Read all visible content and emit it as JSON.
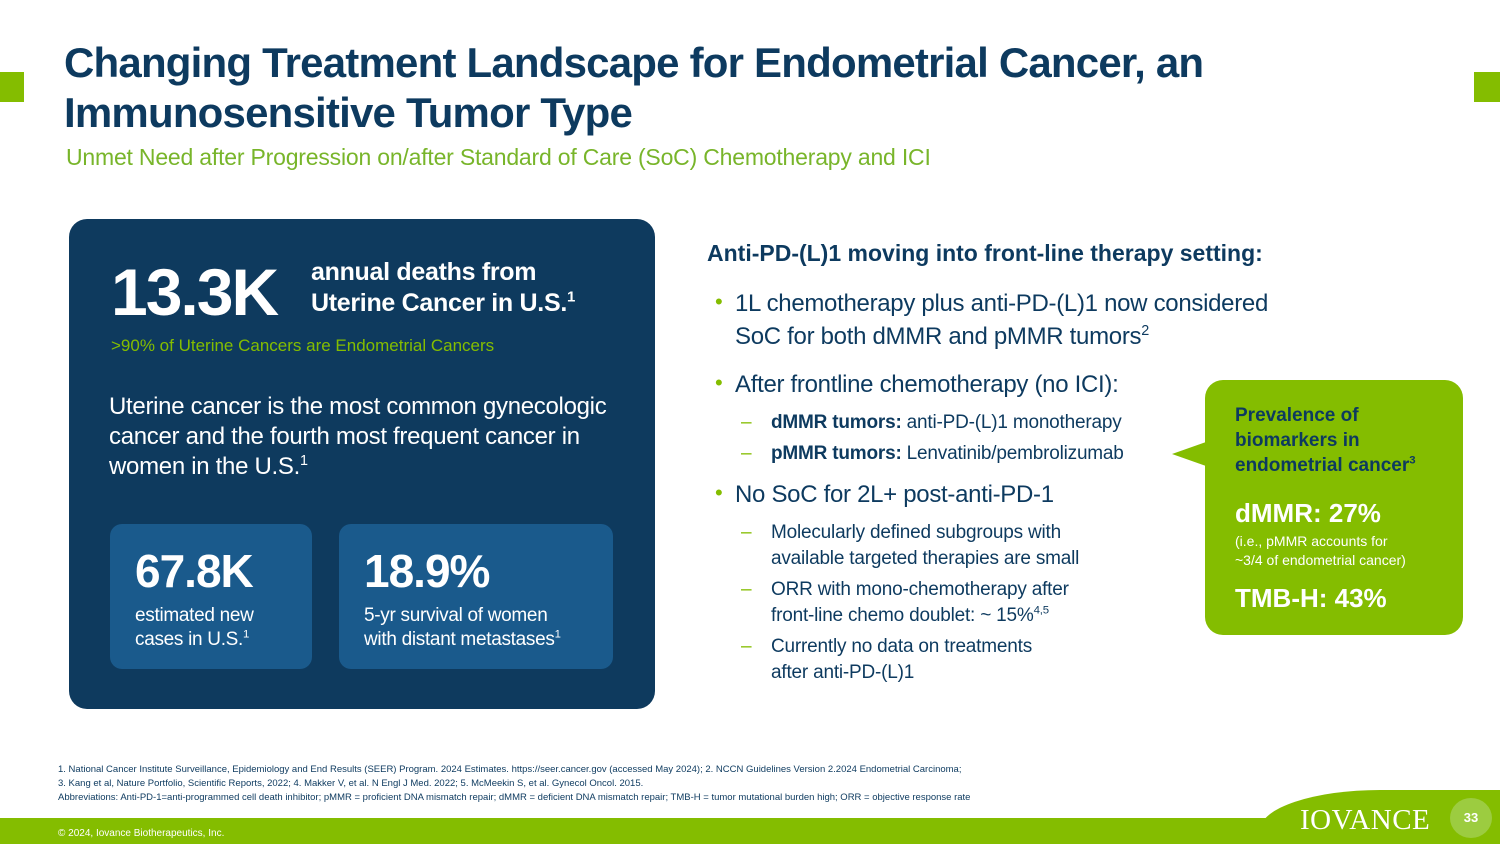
{
  "title": "Changing Treatment Landscape for Endometrial Cancer, an Immunosensitive Tumor Type",
  "subtitle": "Unmet Need after Progression on/after Standard of Care (SoC) Chemotherapy and ICI",
  "left_panel": {
    "big_stat": "13.3K",
    "big_stat_label_line1": "annual deaths from",
    "big_stat_label_line2": "Uterine Cancer in U.S.",
    "big_stat_ref": "1",
    "green_note": ">90% of Uterine Cancers are Endometrial Cancers",
    "description": "Uterine cancer is the most common gynecologic cancer and the fourth most frequent cancer in women in the U.S.",
    "description_ref": "1",
    "stat_boxes": [
      {
        "value": "67.8K",
        "label_line1": "estimated new",
        "label_line2": "cases in U.S.",
        "ref": "1"
      },
      {
        "value": "18.9%",
        "label_line1": "5-yr survival of women",
        "label_line2": "with distant metastases",
        "ref": "1"
      }
    ]
  },
  "right": {
    "heading": "Anti-PD-(L)1 moving into front-line therapy setting:",
    "bullet1_line1": "1L chemotherapy plus anti-PD-(L)1 now considered",
    "bullet1_line2": "SoC for both dMMR and pMMR tumors",
    "bullet1_ref": "2",
    "bullet2": "After frontline chemotherapy (no ICI):",
    "sub1_bold": "dMMR tumors:",
    "sub1_text": " anti-PD-(L)1 monotherapy",
    "sub2_bold": "pMMR tumors:",
    "sub2_text": " Lenvatinib/pembrolizumab",
    "bullet3": "No SoC for 2L+ post-anti-PD-1",
    "sub3_line1": "Molecularly defined subgroups with",
    "sub3_line2": "available targeted therapies are small",
    "sub4_line1": "ORR with mono-chemotherapy after",
    "sub4_line2": "front-line chemo doublet: ~ 15%",
    "sub4_ref": "4,5",
    "sub5_line1": "Currently no data on treatments",
    "sub5_line2": "after anti-PD-(L)1"
  },
  "callout": {
    "heading_line1": "Prevalence of",
    "heading_line2": "biomarkers in",
    "heading_line3": "endometrial cancer",
    "heading_ref": "3",
    "stat1": "dMMR: 27%",
    "note_line1": "(i.e., pMMR accounts for",
    "note_line2": "~3/4 of endometrial cancer)",
    "stat2": "TMB-H: 43%"
  },
  "footnotes": [
    "1.  National Cancer Institute Surveillance, Epidemiology and End Results (SEER) Program. 2024 Estimates. https://seer.cancer.gov (accessed May 2024); 2. NCCN Guidelines Version 2.2024 Endometrial Carcinoma;",
    "3. Kang et al, Nature Portfolio, Scientific Reports, 2022; 4. Makker V, et al. N Engl J Med. 2022; 5. McMeekin S, et al. Gynecol Oncol. 2015.",
    "Abbreviations:  Anti-PD-1=anti-programmed cell death inhibitor; pMMR = proficient DNA mismatch repair; dMMR = deficient DNA mismatch repair; TMB-H = tumor mutational burden high; ORR = objective response rate"
  ],
  "footer": {
    "copyright": "© 2024, Iovance Biotherapeutics, Inc.",
    "logo": "IOVANCE",
    "page_number": "33"
  },
  "colors": {
    "navy": "#0e3a5e",
    "green": "#84bd00",
    "box_blue": "#1a5a8c"
  }
}
